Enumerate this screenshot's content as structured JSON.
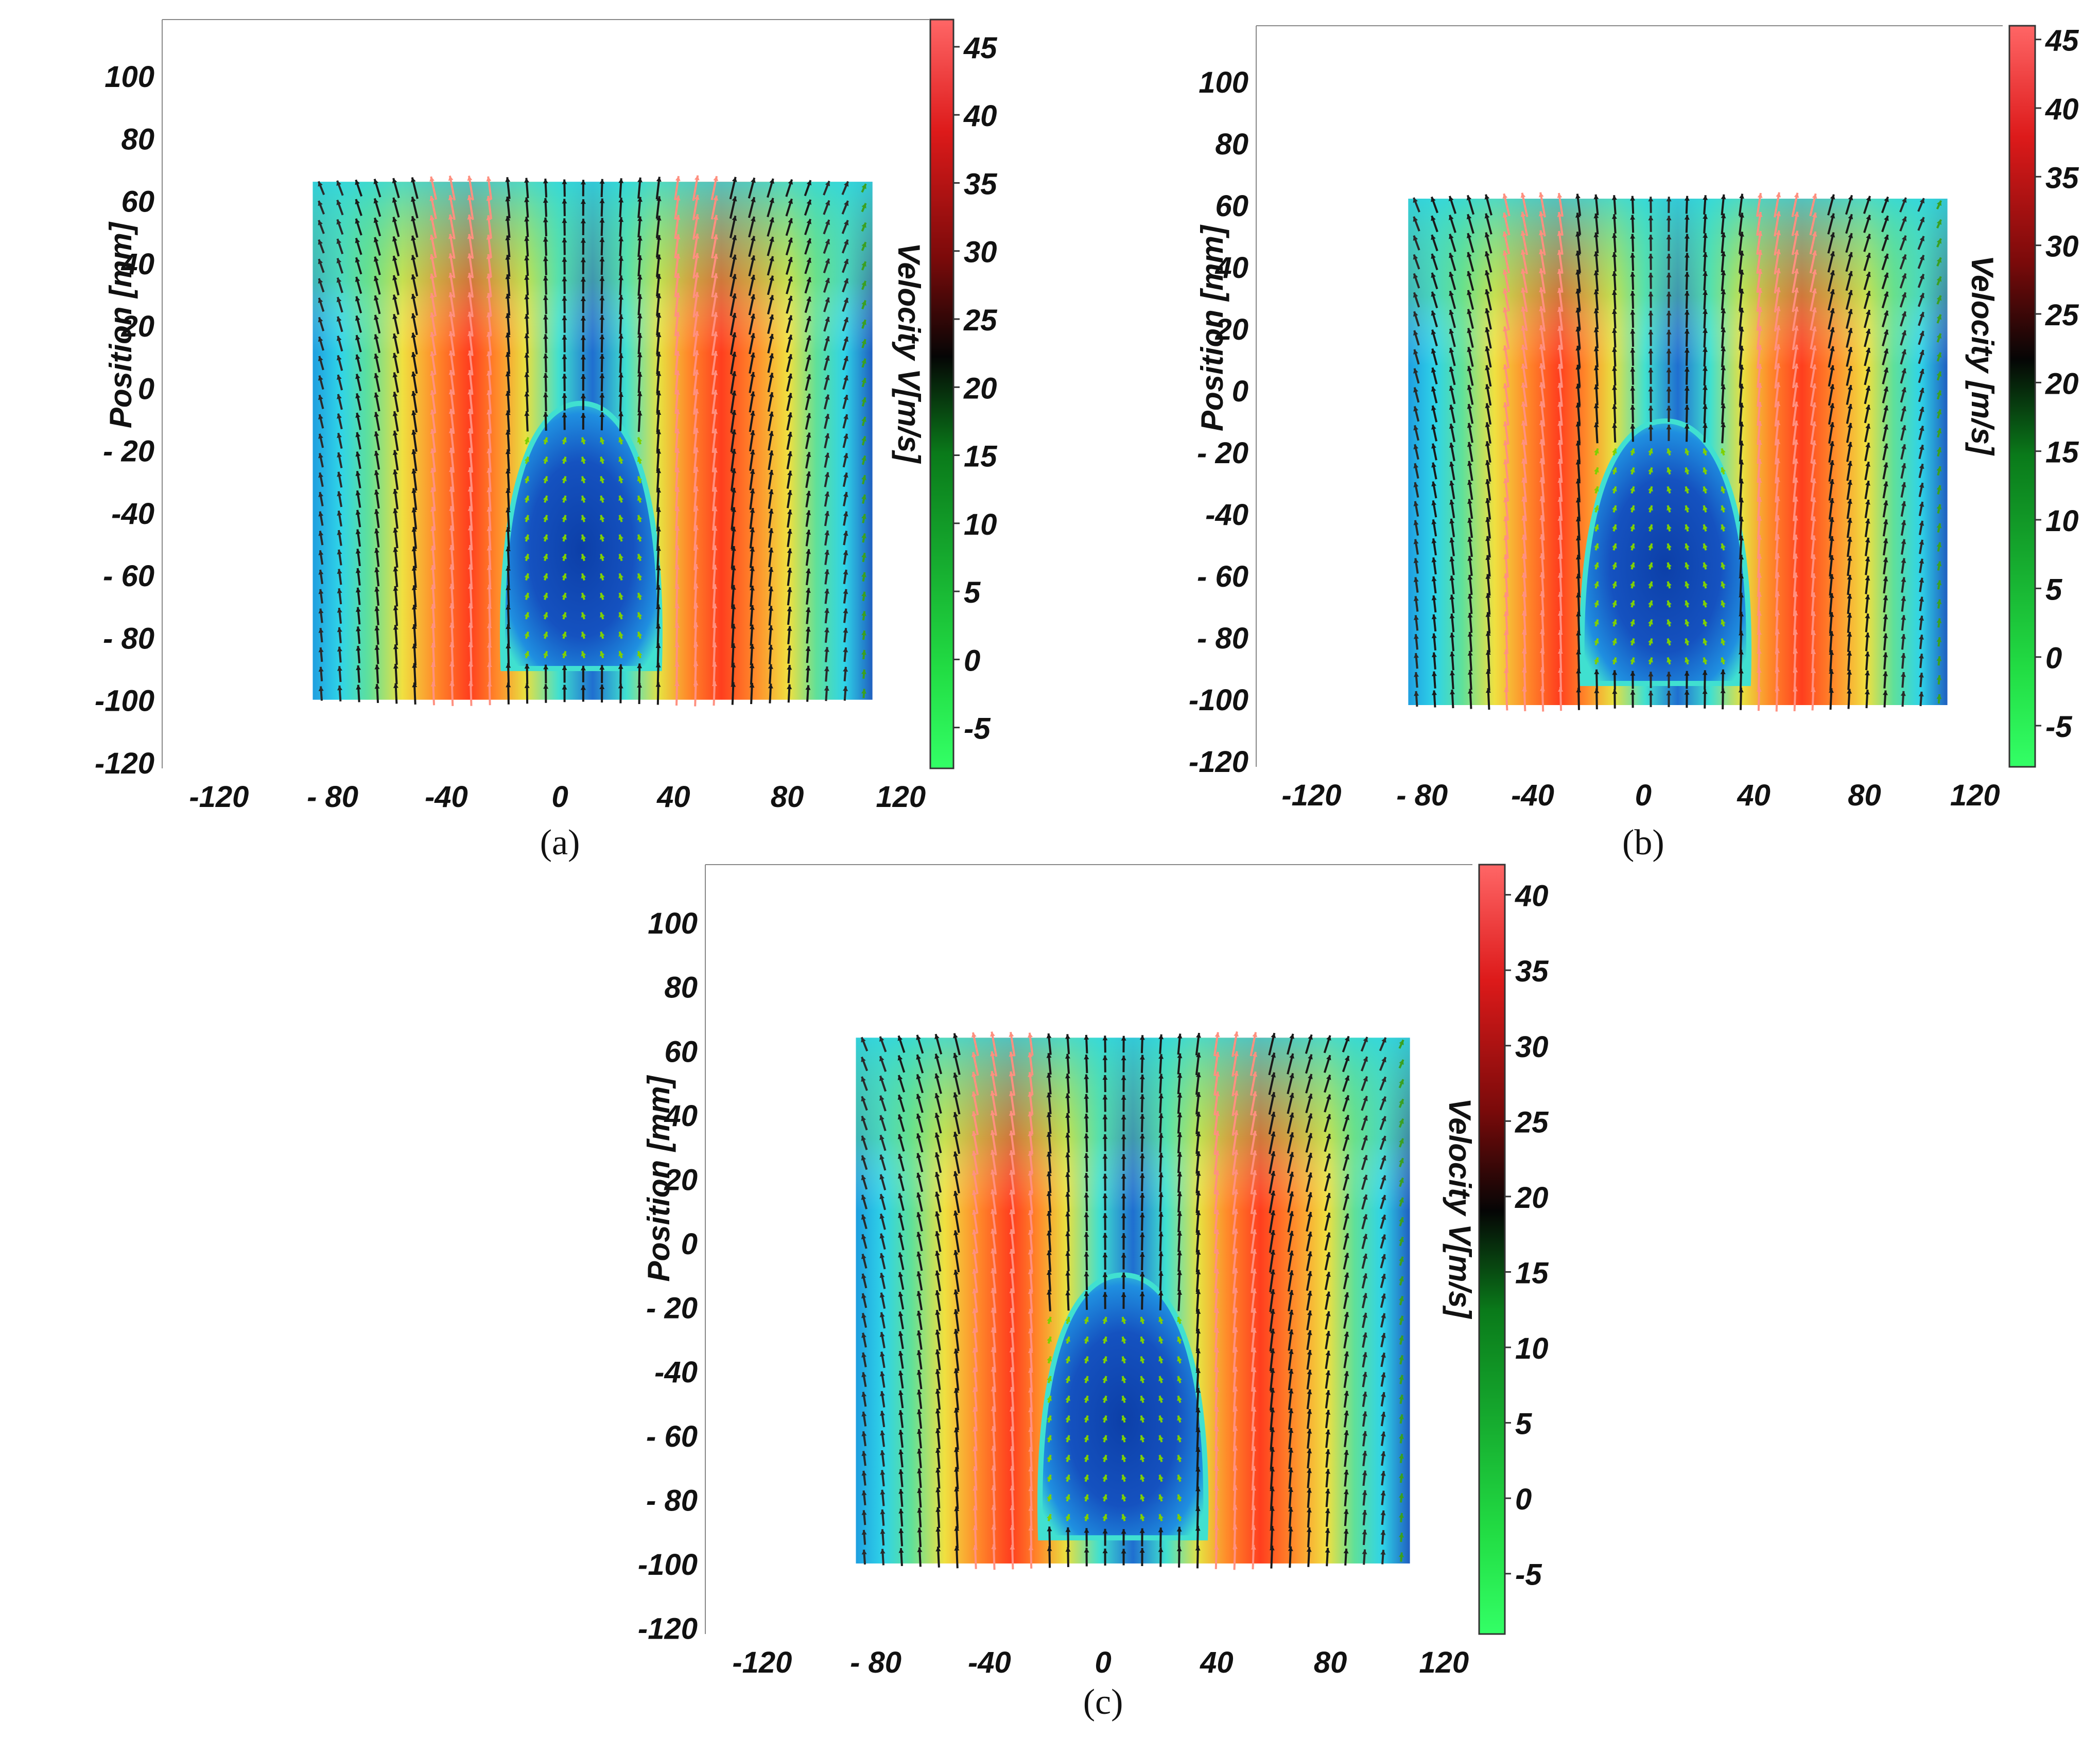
{
  "chart_data": [
    {
      "type": "heatmap",
      "subtype": "velocity vector field (PIV)",
      "caption": "(a)",
      "ylabel": "Position [mm]",
      "colorbar_label": "Velocity V[m/s]",
      "x_ticks": [
        "-120",
        "- 80",
        "-40",
        "0",
        "40",
        "80",
        "120"
      ],
      "x_tick_values": [
        -120,
        -80,
        -40,
        0,
        40,
        80,
        120
      ],
      "y_ticks": [
        "100",
        "80",
        "60",
        "40",
        "20",
        "0",
        "- 20",
        "-40",
        "- 60",
        "- 80",
        "-100",
        "-120"
      ],
      "y_tick_values": [
        100,
        80,
        60,
        40,
        20,
        0,
        -20,
        -40,
        -60,
        -80,
        -100,
        -120
      ],
      "xlim": [
        -140,
        130
      ],
      "ylim": [
        -122,
        118
      ],
      "colorbar_ticks": [
        "45",
        "40",
        "35",
        "30",
        "25",
        "20",
        "15",
        "10",
        "5",
        "0",
        "-5"
      ],
      "colorbar_tick_values": [
        45,
        40,
        35,
        30,
        25,
        20,
        15,
        10,
        5,
        0,
        -5
      ],
      "colorbar_range": [
        -8,
        47
      ],
      "field_extent": {
        "x": [
          -87,
          110
        ],
        "y": [
          -100,
          66
        ]
      },
      "jets": [
        {
          "x": -35,
          "peak": 46
        },
        {
          "x": 48,
          "peak": 45
        }
      ],
      "recirculation_zone": {
        "x": [
          -20,
          35
        ],
        "y": [
          -90,
          -5
        ],
        "min_velocity": -6
      }
    },
    {
      "type": "heatmap",
      "subtype": "velocity vector field (PIV)",
      "caption": "(b)",
      "ylabel": "Position [mm]",
      "colorbar_label": "Velocity [m/s]",
      "x_ticks": [
        "-120",
        "- 80",
        "-40",
        "0",
        "40",
        "80",
        "120"
      ],
      "x_tick_values": [
        -120,
        -80,
        -40,
        0,
        40,
        80,
        120
      ],
      "y_ticks": [
        "100",
        "80",
        "60",
        "40",
        "20",
        "0",
        "- 20",
        "-40",
        "- 60",
        "- 80",
        "-100",
        "-120"
      ],
      "y_tick_values": [
        100,
        80,
        60,
        40,
        20,
        0,
        -20,
        -40,
        -60,
        -80,
        -100,
        -120
      ],
      "xlim": [
        -140,
        130
      ],
      "ylim": [
        -122,
        118
      ],
      "colorbar_ticks": [
        "45",
        "40",
        "35",
        "30",
        "25",
        "20",
        "15",
        "10",
        "5",
        "0",
        "-5"
      ],
      "colorbar_tick_values": [
        45,
        40,
        35,
        30,
        25,
        20,
        15,
        10,
        5,
        0,
        -5
      ],
      "colorbar_range": [
        -8,
        46
      ],
      "field_extent": {
        "x": [
          -85,
          110
        ],
        "y": [
          -102,
          62
        ]
      },
      "jets": [
        {
          "x": -38,
          "peak": 45
        },
        {
          "x": 50,
          "peak": 44
        }
      ],
      "recirculation_zone": {
        "x": [
          -22,
          38
        ],
        "y": [
          -95,
          -10
        ],
        "min_velocity": -6
      }
    },
    {
      "type": "heatmap",
      "subtype": "velocity vector field (PIV)",
      "caption": "(c)",
      "ylabel": "Position [mm]",
      "colorbar_label": "Velocity V[m/s]",
      "x_ticks": [
        "-120",
        "- 80",
        "-40",
        "0",
        "40",
        "80",
        "120"
      ],
      "x_tick_values": [
        -120,
        -80,
        -40,
        0,
        40,
        80,
        120
      ],
      "y_ticks": [
        "100",
        "80",
        "60",
        "40",
        "20",
        "0",
        "- 20",
        "-40",
        "- 60",
        "- 80",
        "-100",
        "-120"
      ],
      "y_tick_values": [
        100,
        80,
        60,
        40,
        20,
        0,
        -20,
        -40,
        -60,
        -80,
        -100,
        -120
      ],
      "xlim": [
        -140,
        130
      ],
      "ylim": [
        -122,
        118
      ],
      "colorbar_ticks": [
        "40",
        "35",
        "30",
        "25",
        "20",
        "15",
        "10",
        "5",
        "0",
        "-5"
      ],
      "colorbar_tick_values": [
        40,
        35,
        30,
        25,
        20,
        15,
        10,
        5,
        0,
        -5
      ],
      "colorbar_range": [
        -9,
        42
      ],
      "field_extent": {
        "x": [
          -87,
          108
        ],
        "y": [
          -100,
          64
        ]
      },
      "jets": [
        {
          "x": -37,
          "peak": 41
        },
        {
          "x": 47,
          "peak": 40
        }
      ],
      "recirculation_zone": {
        "x": [
          -22,
          36
        ],
        "y": [
          -92,
          -10
        ],
        "min_velocity": -7
      }
    }
  ]
}
